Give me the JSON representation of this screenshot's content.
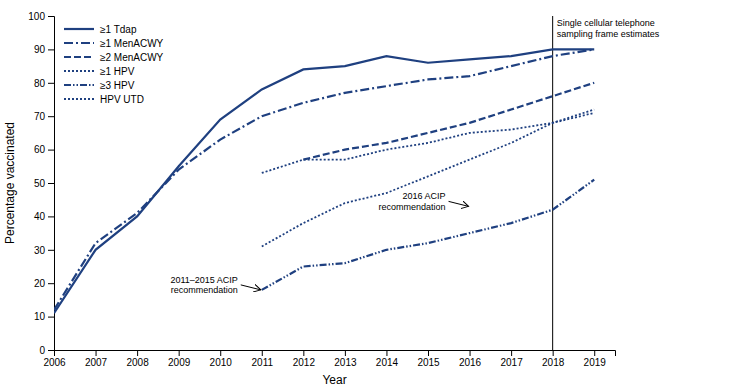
{
  "chart_data": {
    "type": "line",
    "xlabel": "Year",
    "ylabel": "Percentage vaccinated",
    "x": [
      2006,
      2007,
      2008,
      2009,
      2010,
      2011,
      2012,
      2013,
      2014,
      2015,
      2016,
      2017,
      2018,
      2019
    ],
    "xlim": [
      2006,
      2019.5
    ],
    "xticks": [
      2006,
      2007,
      2008,
      2009,
      2010,
      2011,
      2012,
      2013,
      2014,
      2015,
      2016,
      2017,
      2018,
      2019
    ],
    "ylim": [
      0,
      100
    ],
    "yticks": [
      0,
      10,
      20,
      30,
      40,
      50,
      60,
      70,
      80,
      90,
      100
    ],
    "legend": "upper left",
    "series": [
      {
        "name": "≥1 Tdap",
        "color": "#1f4080",
        "line_style": "solid",
        "values": [
          11,
          30,
          40,
          55,
          69,
          78,
          84,
          85,
          88,
          86,
          87,
          88,
          90,
          90
        ]
      },
      {
        "name": "≥1 MenACWY",
        "color": "#1f4080",
        "line_style": "dashdot",
        "values": [
          12,
          32,
          41,
          54,
          63,
          70,
          74,
          77,
          79,
          81,
          82,
          85,
          88,
          90
        ]
      },
      {
        "name": "≥2 MenACWY",
        "color": "#1f4080",
        "line_style": "dashed",
        "values": [
          null,
          null,
          null,
          null,
          null,
          null,
          57,
          60,
          62,
          65,
          68,
          72,
          76,
          80
        ]
      },
      {
        "name": "≥1 HPV",
        "color": "#1f4080",
        "line_style": "dotted",
        "values": [
          null,
          null,
          null,
          null,
          null,
          53,
          57,
          57,
          60,
          62,
          65,
          66,
          68,
          72
        ]
      },
      {
        "name": "≥3 HPV",
        "color": "#1f4080",
        "line_style": "dashdotdot",
        "values": [
          null,
          null,
          null,
          null,
          null,
          18,
          25,
          26,
          30,
          32,
          35,
          38,
          42,
          51
        ]
      },
      {
        "name": "HPV UTD",
        "color": "#1f4080",
        "line_style": "dotted",
        "values": [
          null,
          null,
          null,
          null,
          null,
          31,
          38,
          44,
          47,
          52,
          57,
          62,
          68,
          71
        ]
      }
    ],
    "vlines": [
      {
        "x": 2018,
        "label": "Single cellular telephone\nsampling frame estimates"
      }
    ],
    "annotations": [
      {
        "text": "2011–2015 ACIP\nrecommendation",
        "x": 2011,
        "y": 18
      },
      {
        "text": "2016 ACIP\nrecommendation",
        "x": 2016,
        "y": 43
      }
    ]
  }
}
